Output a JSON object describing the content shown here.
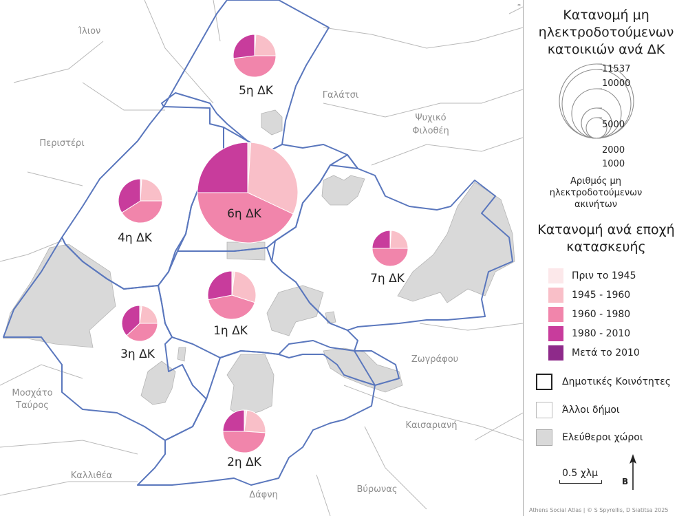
{
  "legend": {
    "title": "Κατανομή μη ηλεκτροδοτούμενων κατοικιών ανά ΔΚ",
    "size_values": [
      "11537",
      "10000",
      "5000",
      "2000",
      "1000"
    ],
    "size_caption": "Αριθμός μη ηλεκτροδοτούμενων ακινήτων",
    "era_title": "Κατανομή ανά εποχή κατασκευής",
    "eras": [
      {
        "label": "Πριν το 1945",
        "color": "#fce8ea"
      },
      {
        "label": "1945 - 1960",
        "color": "#f9bfc8"
      },
      {
        "label": "1960 - 1980",
        "color": "#f185ab"
      },
      {
        "label": "1980 - 2010",
        "color": "#c83c9c"
      },
      {
        "label": "Μετά το 2010",
        "color": "#8e2a8a"
      }
    ],
    "boundary_label": "Δημοτικές Κοινότητες",
    "other_label": "Άλλοι δήμοι",
    "green_label": "Ελεύθεροι χώροι",
    "scale_label": "0.5 χλμ",
    "north_label": "Β",
    "credit": "Athens Social Atlas | © S Spyrellis, D Siatitsa 2025"
  },
  "neighbors": [
    "Ίλιον",
    "Γαλάτσι",
    "Ψυχικό",
    "Φιλοθέη",
    "Περιστέρι",
    "Ζωγράφου",
    "Μοσχάτο",
    "Ταύρος",
    "Καισαριανή",
    "Καλλιθέα",
    "Βύρωνας",
    "Δάφνη"
  ],
  "districts": [
    {
      "label": "1η ΔΚ",
      "shares": [
        0.02,
        0.28,
        0.42,
        0.28
      ]
    },
    {
      "label": "2η ΔΚ",
      "shares": [
        0.02,
        0.24,
        0.49,
        0.25
      ]
    },
    {
      "label": "3η ΔΚ",
      "shares": [
        0.02,
        0.23,
        0.38,
        0.37
      ]
    },
    {
      "label": "4η ΔΚ",
      "shares": [
        0.01,
        0.24,
        0.41,
        0.34
      ]
    },
    {
      "label": "5η ΔΚ",
      "shares": [
        0.01,
        0.24,
        0.48,
        0.27
      ]
    },
    {
      "label": "6η ΔΚ",
      "shares": [
        0.01,
        0.31,
        0.43,
        0.25
      ]
    },
    {
      "label": "7η ΔΚ",
      "shares": [
        0.01,
        0.24,
        0.5,
        0.25
      ]
    }
  ]
}
